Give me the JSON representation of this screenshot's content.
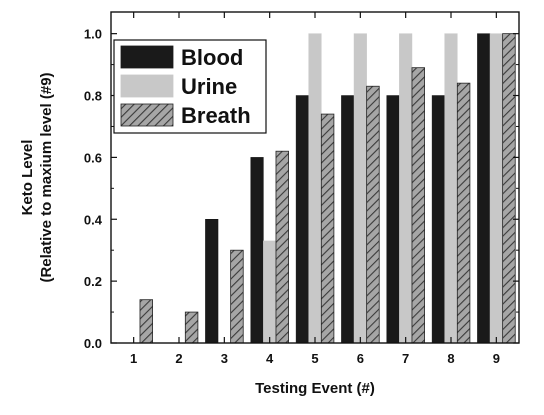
{
  "chart_data": {
    "type": "bar",
    "xlabel": "Testing Event (#)",
    "ylabel_line1": "Keto Level",
    "ylabel_line2": "(Relative to maxium level (#9)",
    "categories": [
      "1",
      "2",
      "3",
      "4",
      "5",
      "6",
      "7",
      "8",
      "9"
    ],
    "ylim": [
      0,
      1.07
    ],
    "yticks": [
      "0.0",
      "0.2",
      "0.4",
      "0.6",
      "0.8",
      "1.0"
    ],
    "ytick_values": [
      0,
      0.2,
      0.4,
      0.6,
      0.8,
      1.0
    ],
    "legend_position": "top-left",
    "series": [
      {
        "name": "Blood",
        "color": "#1a1a1a",
        "pattern": "solid",
        "values": [
          0,
          0,
          0.4,
          0.6,
          0.8,
          0.8,
          0.8,
          0.8,
          1.0
        ]
      },
      {
        "name": "Urine",
        "color": "#c8c8c8",
        "pattern": "solid",
        "values": [
          0,
          0,
          0,
          0.33,
          1.0,
          1.0,
          1.0,
          1.0,
          1.0
        ]
      },
      {
        "name": "Breath",
        "color": "#9a9a9a",
        "pattern": "hatch",
        "values": [
          0.14,
          0.1,
          0.3,
          0.62,
          0.74,
          0.83,
          0.89,
          0.84,
          1.0
        ]
      }
    ]
  }
}
